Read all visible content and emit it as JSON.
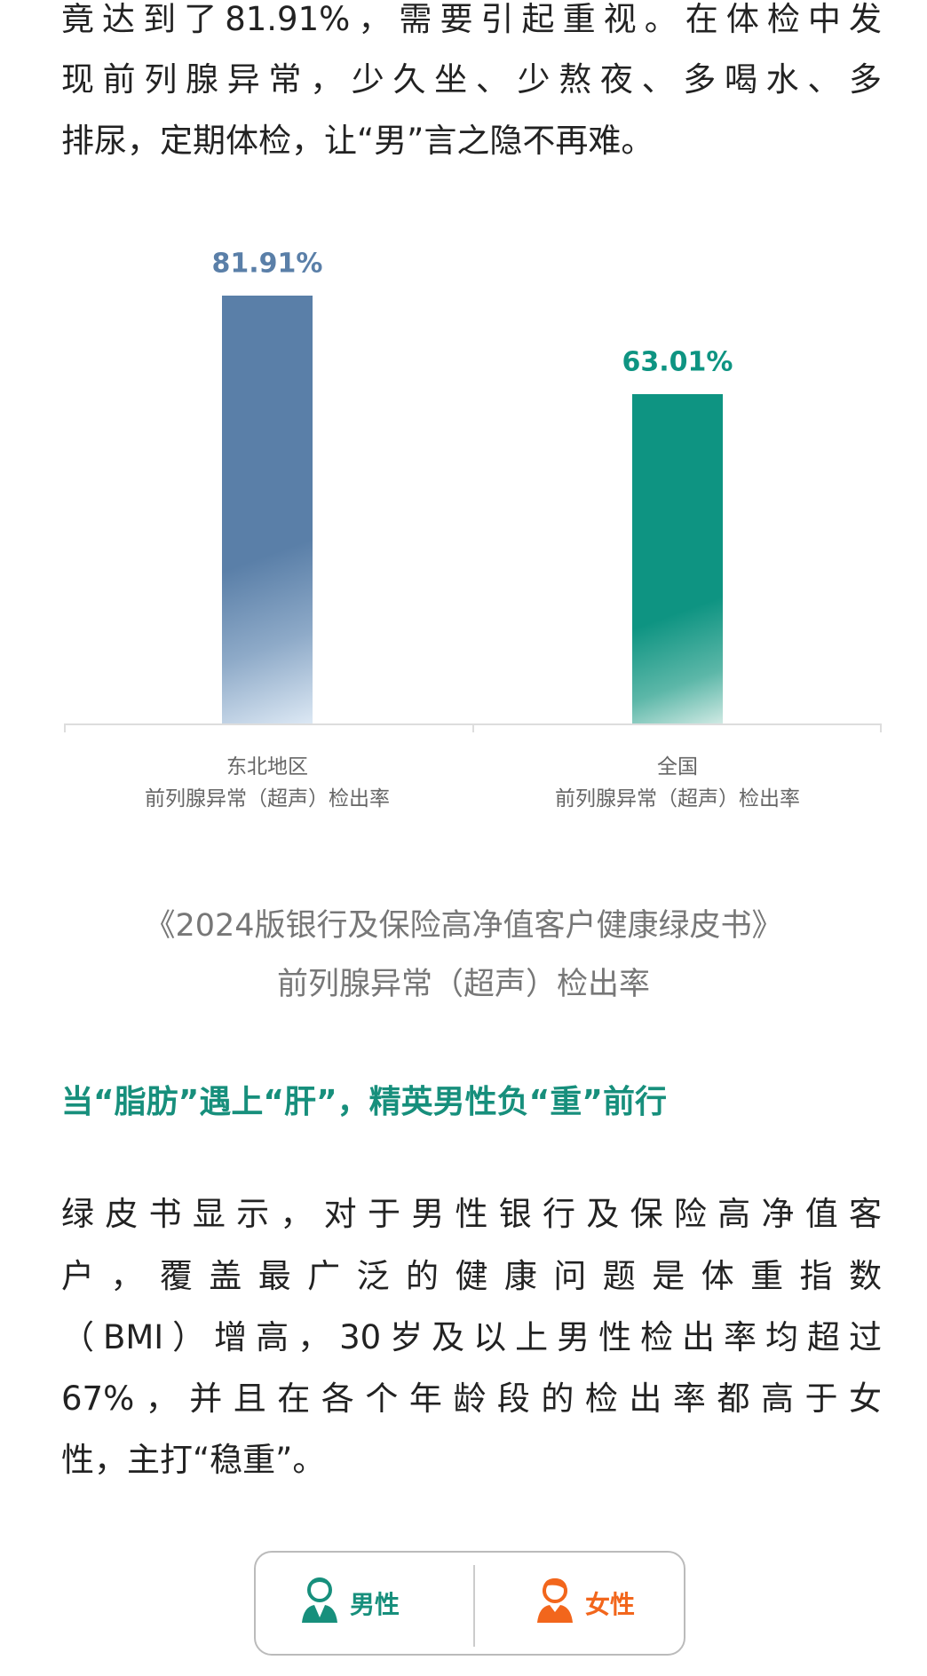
{
  "intro_lines": [
    "竟达到了81.91%，需要引起重视。在体检中发",
    "现前列腺异常，少久坐、少熬夜、多喝水、多",
    "排尿，定期体检，让“男”言之隐不再难。"
  ],
  "chart_data": {
    "type": "bar",
    "categories": [
      "东北地区\n前列腺异常（超声）检出率",
      "全国\n前列腺异常（超声）检出率"
    ],
    "category_lines": [
      [
        "东北地区",
        "前列腺异常（超声）检出率"
      ],
      [
        "全国",
        "前列腺异常（超声）检出率"
      ]
    ],
    "values": [
      81.91,
      63.01
    ],
    "value_labels": [
      "81.91%",
      "63.01%"
    ],
    "colors": [
      "#5a7fa8",
      "#0e9482"
    ],
    "ylim": [
      0,
      100
    ],
    "grid": false,
    "caption": [
      "《2024版银行及保险高净值客户健康绿皮书》",
      "前列腺异常（超声）检出率"
    ]
  },
  "section_heading": "当“脂肪”遇上“肝”，精英男性负“重”前行",
  "body_lines": [
    "绿皮书显示，对于男性银行及保险高净值客",
    "户，覆盖最广泛的健康问题是体重指数",
    "（BMI）增高，30岁及以上男性检出率均超过",
    "67%，并且在各个年龄段的检出率都高于女",
    "性，主打“稳重”。"
  ],
  "gender_tabs": [
    {
      "label": "男性",
      "icon": "male-user-icon",
      "color": "#178f7c"
    },
    {
      "label": "女性",
      "icon": "female-user-icon",
      "color": "#f2661c"
    }
  ]
}
